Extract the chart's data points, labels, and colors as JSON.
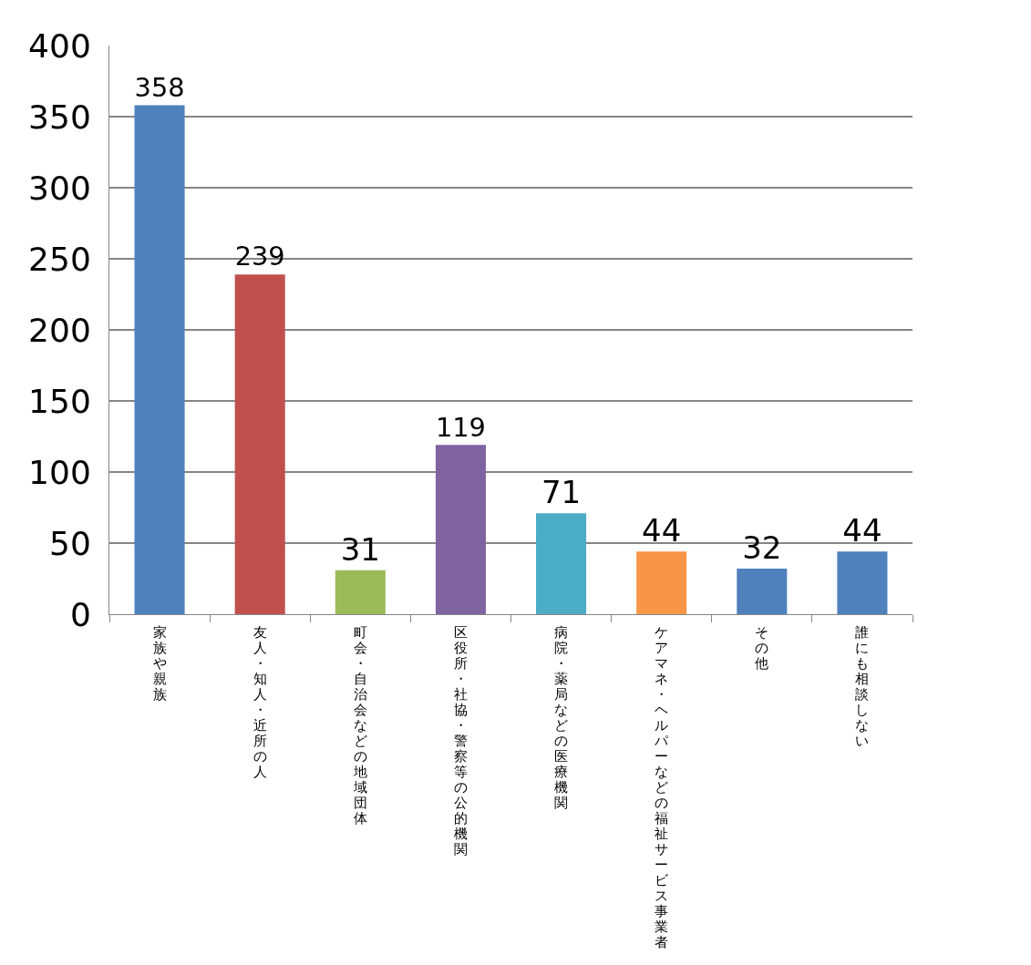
{
  "chart_data": {
    "type": "bar",
    "categories": [
      "家族や親族",
      "友人・知人・近所の人",
      "町会・自治会などの地域団体",
      "区役所・社協・警察等の公的機関",
      "病院・薬局などの医療機関",
      "ケアマネ・ヘルパーなどの福祉サービス事業者",
      "その他",
      "誰にも相談しない"
    ],
    "values": [
      358,
      239,
      31,
      119,
      71,
      44,
      32,
      44
    ],
    "colors": [
      "#4f81bd",
      "#c0504d",
      "#9bbb59",
      "#8064a2",
      "#4bacc6",
      "#f79646",
      "#4f81bd",
      "#4f81bd"
    ],
    "ylim": [
      0,
      400
    ],
    "yticks": [
      0,
      50,
      100,
      150,
      200,
      250,
      300,
      350,
      400
    ],
    "grid": "y",
    "data_labels": true
  }
}
